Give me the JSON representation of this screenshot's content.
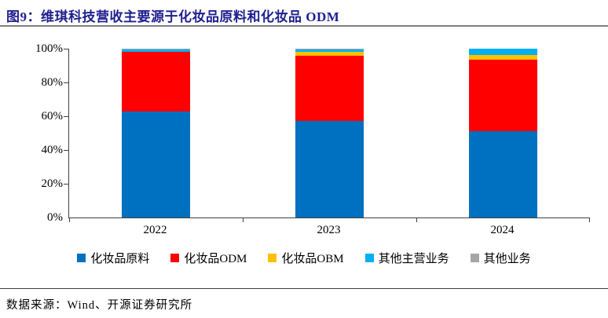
{
  "header": {
    "title": "图9：维琪科技营收主要源于化妆品原料和化妆品 ODM"
  },
  "footer": {
    "source": "数据来源：Wind、开源证券研究所"
  },
  "colors": {
    "title": "#1F1F8F",
    "axis": "#404040",
    "series_blue": "#0070C0",
    "series_red": "#FF0000",
    "series_yellow": "#FFC000",
    "series_cyan": "#00B0F0",
    "series_gray": "#A6A6A6"
  },
  "chart_data": {
    "type": "bar",
    "stacked": true,
    "title": "维琪科技营收主要源于化妆品原料和化妆品 ODM",
    "categories": [
      "2022",
      "2023",
      "2024"
    ],
    "series": [
      {
        "name": "化妆品原料",
        "color": "#0070C0",
        "values": [
          63,
          57,
          51
        ]
      },
      {
        "name": "化妆品ODM",
        "color": "#FF0000",
        "values": [
          35,
          39,
          42.5
        ]
      },
      {
        "name": "化妆品OBM",
        "color": "#FFC000",
        "values": [
          0,
          2,
          3
        ]
      },
      {
        "name": "其他主营业务",
        "color": "#00B0F0",
        "values": [
          1.5,
          1.5,
          3.5
        ]
      },
      {
        "name": "其他业务",
        "color": "#A6A6A6",
        "values": [
          0.5,
          0.5,
          0
        ]
      }
    ],
    "xlabel": "",
    "ylabel": "",
    "ylim": [
      0,
      100
    ],
    "yticks": [
      0,
      20,
      40,
      60,
      80,
      100
    ],
    "ytick_suffix": "%",
    "grid": false,
    "legend_position": "bottom"
  }
}
